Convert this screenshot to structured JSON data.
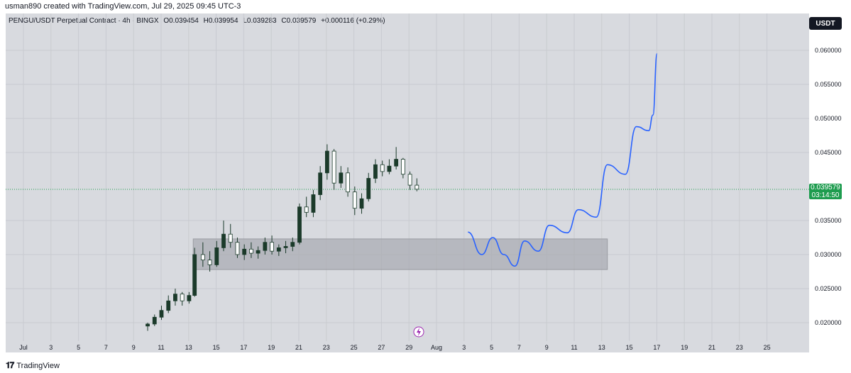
{
  "header": {
    "author_line": "usman890 created with TradingView.com, Jul 29, 2025 09:45 UTC-3"
  },
  "symbol": {
    "name": "PENGU/USDT Perpetual Contract · 4h · BINGX",
    "open": "O0.039454",
    "high": "H0.039954",
    "low": "L0.039283",
    "close": "C0.039579",
    "change": "+0.000116 (+0.29%)"
  },
  "currency_badge": "USDT",
  "last_price": {
    "value": "0.039579",
    "countdown": "03:14:50",
    "color": "#1e9c4f"
  },
  "footer": {
    "brand": "TradingView",
    "logo_icon": "tradingview-logo-icon"
  },
  "colors": {
    "background": "#d8dadf",
    "up_candle": "#1b3a2a",
    "down_candle": "#1b3a2a",
    "projection_line": "#2962ff",
    "zone_fill": "#a8aab0"
  },
  "chart_data": {
    "type": "candlestick",
    "title": "",
    "y_axis": {
      "ticks": [
        "0.060000",
        "0.055000",
        "0.050000",
        "0.045000",
        "0.035000",
        "0.030000",
        "0.025000",
        "0.020000"
      ],
      "range": [
        0.0186,
        0.065
      ]
    },
    "x_axis": {
      "ticks": [
        "Jul",
        "3",
        "5",
        "7",
        "9",
        "11",
        "13",
        "15",
        "17",
        "19",
        "21",
        "23",
        "25",
        "27",
        "29",
        "Aug",
        "3",
        "5",
        "7",
        "9",
        "11",
        "13",
        "15",
        "17",
        "19",
        "21",
        "23",
        "25"
      ],
      "range_days": [
        1,
        57
      ]
    },
    "candles_approx": [
      {
        "day": 10.0,
        "o": 0.0195,
        "h": 0.02,
        "l": 0.0188,
        "c": 0.0198
      },
      {
        "day": 10.5,
        "o": 0.0198,
        "h": 0.0212,
        "l": 0.0195,
        "c": 0.0208
      },
      {
        "day": 11.0,
        "o": 0.0208,
        "h": 0.0225,
        "l": 0.0204,
        "c": 0.0218
      },
      {
        "day": 11.5,
        "o": 0.0218,
        "h": 0.024,
        "l": 0.0214,
        "c": 0.0232
      },
      {
        "day": 12.0,
        "o": 0.0232,
        "h": 0.025,
        "l": 0.0225,
        "c": 0.0242
      },
      {
        "day": 12.5,
        "o": 0.0242,
        "h": 0.0245,
        "l": 0.0225,
        "c": 0.0232
      },
      {
        "day": 13.0,
        "o": 0.0232,
        "h": 0.0245,
        "l": 0.0228,
        "c": 0.024
      },
      {
        "day": 13.4,
        "o": 0.024,
        "h": 0.031,
        "l": 0.0238,
        "c": 0.03
      },
      {
        "day": 14.0,
        "o": 0.03,
        "h": 0.0318,
        "l": 0.0282,
        "c": 0.0292
      },
      {
        "day": 14.5,
        "o": 0.0292,
        "h": 0.0305,
        "l": 0.0275,
        "c": 0.0285
      },
      {
        "day": 15.0,
        "o": 0.0285,
        "h": 0.032,
        "l": 0.0282,
        "c": 0.031
      },
      {
        "day": 15.5,
        "o": 0.031,
        "h": 0.035,
        "l": 0.0305,
        "c": 0.033
      },
      {
        "day": 16.0,
        "o": 0.033,
        "h": 0.0345,
        "l": 0.031,
        "c": 0.0318
      },
      {
        "day": 16.5,
        "o": 0.0318,
        "h": 0.0325,
        "l": 0.0295,
        "c": 0.03
      },
      {
        "day": 17.0,
        "o": 0.03,
        "h": 0.0315,
        "l": 0.0292,
        "c": 0.0308
      },
      {
        "day": 17.5,
        "o": 0.0308,
        "h": 0.0318,
        "l": 0.0295,
        "c": 0.0302
      },
      {
        "day": 18.0,
        "o": 0.0302,
        "h": 0.0312,
        "l": 0.0294,
        "c": 0.0306
      },
      {
        "day": 18.5,
        "o": 0.0306,
        "h": 0.0325,
        "l": 0.03,
        "c": 0.0318
      },
      {
        "day": 19.0,
        "o": 0.0318,
        "h": 0.0328,
        "l": 0.03,
        "c": 0.0305
      },
      {
        "day": 19.5,
        "o": 0.0305,
        "h": 0.0315,
        "l": 0.0298,
        "c": 0.031
      },
      {
        "day": 20.0,
        "o": 0.031,
        "h": 0.032,
        "l": 0.0302,
        "c": 0.0312
      },
      {
        "day": 20.5,
        "o": 0.0312,
        "h": 0.0325,
        "l": 0.0305,
        "c": 0.0318
      },
      {
        "day": 21.0,
        "o": 0.0318,
        "h": 0.0375,
        "l": 0.0315,
        "c": 0.037
      },
      {
        "day": 21.5,
        "o": 0.037,
        "h": 0.0385,
        "l": 0.0355,
        "c": 0.0362
      },
      {
        "day": 22.0,
        "o": 0.0362,
        "h": 0.0395,
        "l": 0.0355,
        "c": 0.0388
      },
      {
        "day": 22.5,
        "o": 0.0388,
        "h": 0.043,
        "l": 0.038,
        "c": 0.042
      },
      {
        "day": 23.0,
        "o": 0.042,
        "h": 0.0462,
        "l": 0.041,
        "c": 0.0452
      },
      {
        "day": 23.5,
        "o": 0.0452,
        "h": 0.0455,
        "l": 0.0395,
        "c": 0.0405
      },
      {
        "day": 24.0,
        "o": 0.0405,
        "h": 0.043,
        "l": 0.0398,
        "c": 0.042
      },
      {
        "day": 24.5,
        "o": 0.042,
        "h": 0.0428,
        "l": 0.0385,
        "c": 0.0392
      },
      {
        "day": 25.0,
        "o": 0.0392,
        "h": 0.04,
        "l": 0.0358,
        "c": 0.0368
      },
      {
        "day": 25.5,
        "o": 0.0368,
        "h": 0.039,
        "l": 0.036,
        "c": 0.0382
      },
      {
        "day": 26.0,
        "o": 0.0382,
        "h": 0.042,
        "l": 0.0378,
        "c": 0.0412
      },
      {
        "day": 26.5,
        "o": 0.0412,
        "h": 0.044,
        "l": 0.0405,
        "c": 0.0432
      },
      {
        "day": 27.0,
        "o": 0.0432,
        "h": 0.0438,
        "l": 0.0415,
        "c": 0.0422
      },
      {
        "day": 27.5,
        "o": 0.0422,
        "h": 0.044,
        "l": 0.0418,
        "c": 0.043
      },
      {
        "day": 28.0,
        "o": 0.043,
        "h": 0.0458,
        "l": 0.0425,
        "c": 0.044
      },
      {
        "day": 28.5,
        "o": 0.044,
        "h": 0.0442,
        "l": 0.0412,
        "c": 0.0418
      },
      {
        "day": 29.0,
        "o": 0.0418,
        "h": 0.0422,
        "l": 0.0395,
        "c": 0.0402
      },
      {
        "day": 29.5,
        "o": 0.0402,
        "h": 0.0412,
        "l": 0.0393,
        "c": 0.0396
      }
    ],
    "zone": {
      "day_start": 13.3,
      "day_end": 43.3,
      "price_low": 0.0278,
      "price_high": 0.0323
    },
    "projection_path": [
      [
        33.2,
        0.0333
      ],
      [
        34.2,
        0.03
      ],
      [
        35.0,
        0.0325
      ],
      [
        35.8,
        0.03
      ],
      [
        36.6,
        0.0283
      ],
      [
        37.3,
        0.032
      ],
      [
        38.3,
        0.0305
      ],
      [
        39.1,
        0.0343
      ],
      [
        40.4,
        0.0332
      ],
      [
        41.2,
        0.0366
      ],
      [
        42.5,
        0.0355
      ],
      [
        43.3,
        0.0432
      ],
      [
        44.6,
        0.0418
      ],
      [
        45.4,
        0.0488
      ],
      [
        46.3,
        0.0482
      ],
      [
        46.6,
        0.0505
      ],
      [
        46.9,
        0.0595
      ]
    ]
  }
}
